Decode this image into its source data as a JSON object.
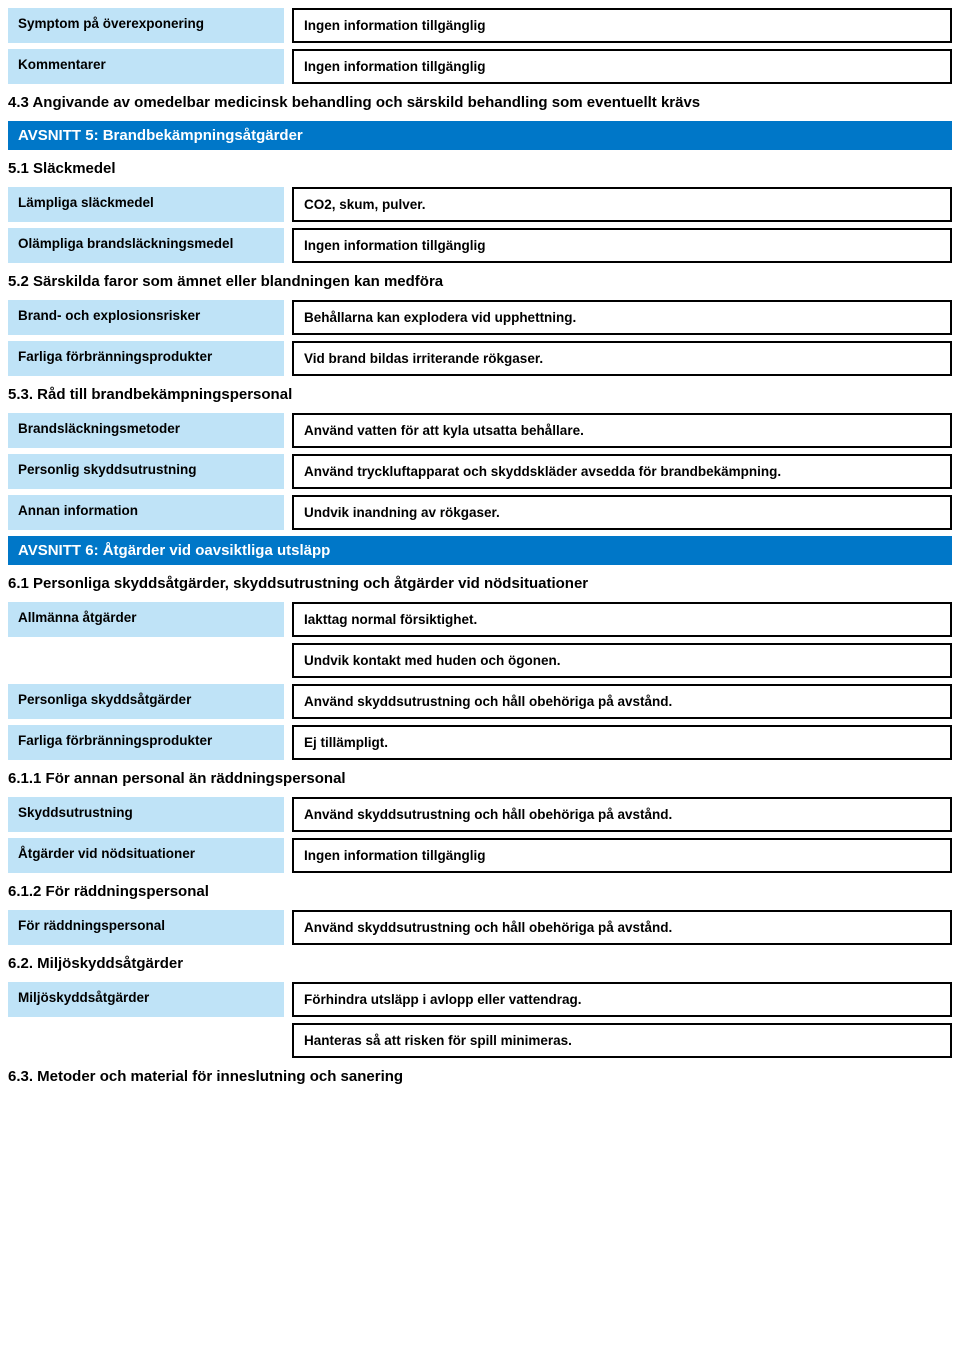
{
  "colors": {
    "section_bg": "#0077c8",
    "label_bg": "#bfe3f7",
    "border": "#000000",
    "page_bg": "#ffffff",
    "text": "#000000",
    "section_text": "#ffffff"
  },
  "top_rows": [
    {
      "label": "Symptom på överexponering",
      "value": "Ingen information tillgänglig"
    },
    {
      "label": "Kommentarer",
      "value": "Ingen information tillgänglig"
    }
  ],
  "heading_4_3": "4.3 Angivande av omedelbar medicinsk behandling och särskild behandling som eventuellt krävs",
  "section5": {
    "title": "AVSNITT 5: Brandbekämpningsåtgärder",
    "h_5_1": "5.1 Släckmedel",
    "rows_5_1": [
      {
        "label": "Lämpliga släckmedel",
        "value": "CO2, skum, pulver."
      },
      {
        "label": "Olämpliga brandsläckningsmedel",
        "value": "Ingen information tillgänglig"
      }
    ],
    "h_5_2": "5.2 Särskilda faror som ämnet eller blandningen kan medföra",
    "rows_5_2": [
      {
        "label": "Brand- och explosionsrisker",
        "value": "Behållarna kan explodera vid upphettning."
      },
      {
        "label": "Farliga förbränningsprodukter",
        "value": "Vid brand bildas irriterande rökgaser."
      }
    ],
    "h_5_3": "5.3. Råd till brandbekämpningspersonal",
    "rows_5_3": [
      {
        "label": "Brandsläckningsmetoder",
        "value": "Använd vatten för att kyla utsatta behållare."
      },
      {
        "label": "Personlig skyddsutrustning",
        "value": "Använd tryckluftapparat och skyddskläder avsedda för brandbekämpning."
      },
      {
        "label": "Annan information",
        "value": "Undvik inandning av rökgaser."
      }
    ]
  },
  "section6": {
    "title": "AVSNITT 6: Åtgärder vid oavsiktliga utsläpp",
    "h_6_1": "6.1 Personliga skyddsåtgärder, skyddsutrustning och åtgärder vid nödsituationer",
    "rows_6_1a": [
      {
        "label": "Allmänna åtgärder",
        "value": "Iakttag normal försiktighet."
      }
    ],
    "extra_6_1a": "Undvik kontakt med huden och ögonen.",
    "rows_6_1b": [
      {
        "label": "Personliga skyddsåtgärder",
        "value": "Använd skyddsutrustning och håll obehöriga på avstånd."
      },
      {
        "label": "Farliga förbränningsprodukter",
        "value": "Ej tillämpligt."
      }
    ],
    "h_6_1_1": "6.1.1 För annan personal än räddningspersonal",
    "rows_6_1_1": [
      {
        "label": "Skyddsutrustning",
        "value": "Använd skyddsutrustning och håll obehöriga på avstånd."
      },
      {
        "label": "Åtgärder vid nödsituationer",
        "value": "Ingen information tillgänglig"
      }
    ],
    "h_6_1_2": "6.1.2 För räddningspersonal",
    "rows_6_1_2": [
      {
        "label": "För räddningspersonal",
        "value": "Använd skyddsutrustning och håll obehöriga på avstånd."
      }
    ],
    "h_6_2": "6.2. Miljöskyddsåtgärder",
    "rows_6_2": [
      {
        "label": "Miljöskyddsåtgärder",
        "value": "Förhindra utsläpp i avlopp eller vattendrag."
      }
    ],
    "extra_6_2": "Hanteras så att risken för spill minimeras.",
    "h_6_3": "6.3. Metoder och material för inneslutning och sanering"
  }
}
